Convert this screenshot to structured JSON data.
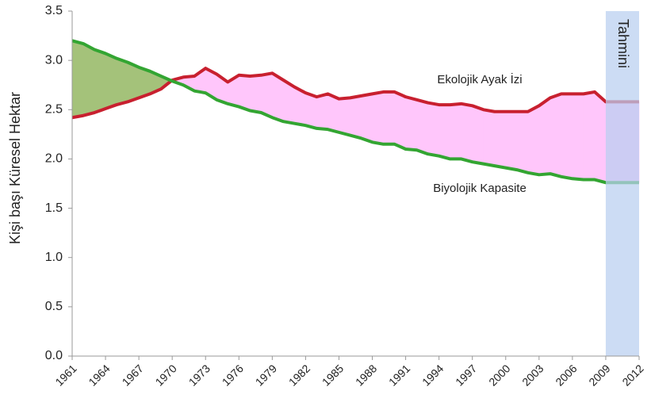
{
  "chart_data": {
    "type": "line",
    "ylabel": "Kişi başı Küresel Hektar",
    "x": [
      1961,
      1962,
      1963,
      1964,
      1965,
      1966,
      1967,
      1968,
      1969,
      1970,
      1971,
      1972,
      1973,
      1974,
      1975,
      1976,
      1977,
      1978,
      1979,
      1980,
      1981,
      1982,
      1983,
      1984,
      1985,
      1986,
      1987,
      1988,
      1989,
      1990,
      1991,
      1992,
      1993,
      1994,
      1995,
      1996,
      1997,
      1998,
      1999,
      2000,
      2001,
      2002,
      2003,
      2004,
      2005,
      2006,
      2007,
      2008,
      2009,
      2010,
      2011,
      2012
    ],
    "series": [
      {
        "name": "Ekolojik Ayak İzi",
        "color": "#c8202f",
        "values": [
          2.42,
          2.44,
          2.47,
          2.51,
          2.55,
          2.58,
          2.62,
          2.66,
          2.71,
          2.8,
          2.83,
          2.84,
          2.92,
          2.86,
          2.78,
          2.85,
          2.84,
          2.85,
          2.87,
          2.8,
          2.73,
          2.67,
          2.63,
          2.66,
          2.61,
          2.62,
          2.64,
          2.66,
          2.68,
          2.68,
          2.63,
          2.6,
          2.57,
          2.55,
          2.55,
          2.56,
          2.54,
          2.5,
          2.48,
          2.48,
          2.48,
          2.48,
          2.54,
          2.62,
          2.66,
          2.66,
          2.66,
          2.68,
          2.58,
          2.58,
          2.58,
          2.58
        ]
      },
      {
        "name": "Biyolojik Kapasite",
        "color": "#33a532",
        "values": [
          3.2,
          3.17,
          3.11,
          3.07,
          3.02,
          2.98,
          2.93,
          2.89,
          2.84,
          2.79,
          2.75,
          2.69,
          2.67,
          2.6,
          2.56,
          2.53,
          2.49,
          2.47,
          2.42,
          2.38,
          2.36,
          2.34,
          2.31,
          2.3,
          2.27,
          2.24,
          2.21,
          2.17,
          2.15,
          2.15,
          2.1,
          2.09,
          2.05,
          2.03,
          2.0,
          2.0,
          1.97,
          1.95,
          1.93,
          1.91,
          1.89,
          1.86,
          1.84,
          1.85,
          1.82,
          1.8,
          1.79,
          1.79,
          1.76,
          1.76,
          1.76,
          1.76
        ]
      }
    ],
    "deficit_fill": "#ffc6fb",
    "reserve_fill": "#a4c27a",
    "shaded_region": {
      "label": "Tahmini",
      "x": [
        2009,
        2012
      ],
      "color": "#b9cff0"
    },
    "xlim": [
      1961,
      2012
    ],
    "xticks": [
      1961,
      1964,
      1967,
      1970,
      1973,
      1976,
      1979,
      1982,
      1985,
      1988,
      1991,
      1994,
      1997,
      2000,
      2003,
      2006,
      2009,
      2012
    ],
    "ylim": [
      0,
      3.5
    ],
    "yticks": [
      {
        "value": 0,
        "label": "0.0"
      },
      {
        "value": 0.5,
        "label": "0.5"
      },
      {
        "value": 1,
        "label": "1.0"
      },
      {
        "value": 1.5,
        "label": "1.5"
      },
      {
        "value": 2,
        "label": "2.0"
      },
      {
        "value": 2.5,
        "label": "2.5"
      },
      {
        "value": 3,
        "label": "3.0"
      },
      {
        "value": 3.5,
        "label": "3.5"
      }
    ],
    "grid": false
  }
}
